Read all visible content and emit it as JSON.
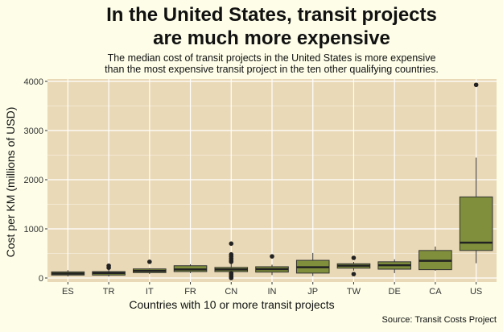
{
  "title": "In the United States, transit projects\nare much more expensive",
  "subtitle": "The median cost of transit projects in the United States is more expensive\nthan the most expensive transit project in the ten other qualifying countries.",
  "source": "Source: Transit Costs Project",
  "colors": {
    "panel": "#ead9b6",
    "box": "#7f8f3b",
    "page": "#fdfde8",
    "grid": "#ffffff"
  },
  "chart_data": {
    "type": "boxplot",
    "xlabel": "Countries with 10 or more transit projects",
    "ylabel": "Cost per KM (millions of USD)",
    "ylim": [
      0,
      4000
    ],
    "yticks": [
      0,
      1000,
      2000,
      3000,
      4000
    ],
    "grid": true,
    "categories": [
      "ES",
      "TR",
      "IT",
      "FR",
      "CN",
      "IN",
      "JP",
      "TW",
      "DE",
      "CA",
      "US"
    ],
    "boxes": [
      {
        "q1": 60,
        "median": 90,
        "q3": 125,
        "whisker_low": 30,
        "whisker_high": 160,
        "outliers": []
      },
      {
        "q1": 60,
        "median": 100,
        "q3": 130,
        "whisker_low": 30,
        "whisker_high": 190,
        "outliers": [
          210,
          250
        ]
      },
      {
        "q1": 110,
        "median": 145,
        "q3": 185,
        "whisker_low": 80,
        "whisker_high": 200,
        "outliers": [
          330
        ]
      },
      {
        "q1": 130,
        "median": 175,
        "q3": 250,
        "whisker_low": 100,
        "whisker_high": 280,
        "outliers": []
      },
      {
        "q1": 130,
        "median": 175,
        "q3": 215,
        "whisker_low": 30,
        "whisker_high": 320,
        "outliers": [
          330,
          360,
          400,
          440,
          480,
          700,
          0,
          20,
          50,
          80,
          100
        ]
      },
      {
        "q1": 120,
        "median": 180,
        "q3": 230,
        "whisker_low": 60,
        "whisker_high": 270,
        "outliers": [
          440
        ]
      },
      {
        "q1": 100,
        "median": 220,
        "q3": 360,
        "whisker_low": 40,
        "whisker_high": 510,
        "outliers": []
      },
      {
        "q1": 200,
        "median": 250,
        "q3": 290,
        "whisker_low": 150,
        "whisker_high": 330,
        "outliers": [
          80,
          410
        ]
      },
      {
        "q1": 180,
        "median": 260,
        "q3": 330,
        "whisker_low": 100,
        "whisker_high": 380,
        "outliers": []
      },
      {
        "q1": 170,
        "median": 350,
        "q3": 560,
        "whisker_low": 150,
        "whisker_high": 640,
        "outliers": []
      },
      {
        "q1": 560,
        "median": 720,
        "q3": 1650,
        "whisker_low": 300,
        "whisker_high": 2450,
        "outliers": [
          3930
        ]
      }
    ]
  }
}
